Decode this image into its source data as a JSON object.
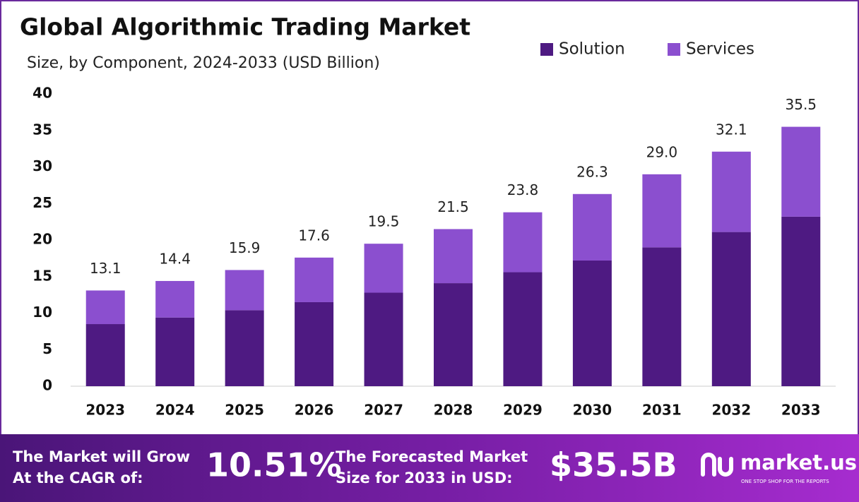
{
  "chart_data": {
    "type": "stacked-bar",
    "title": "Global Algorithmic Trading Market",
    "subtitle": "Size, by Component, 2024-2033 (USD Billion)",
    "categories": [
      "2023",
      "2024",
      "2025",
      "2026",
      "2027",
      "2028",
      "2029",
      "2030",
      "2031",
      "2032",
      "2033"
    ],
    "series": [
      {
        "name": "Solution",
        "color": "#4e1a82",
        "values": [
          8.5,
          9.4,
          10.4,
          11.5,
          12.8,
          14.1,
          15.6,
          17.2,
          19.0,
          21.1,
          23.2
        ]
      },
      {
        "name": "Services",
        "color": "#8b4fcf",
        "values": [
          4.6,
          5.0,
          5.5,
          6.1,
          6.7,
          7.4,
          8.2,
          9.1,
          10.0,
          11.0,
          12.3
        ]
      }
    ],
    "totals": [
      13.1,
      14.4,
      15.9,
      17.6,
      19.5,
      21.5,
      23.8,
      26.3,
      29.0,
      32.1,
      35.5
    ],
    "total_labels": [
      "13.1",
      "14.4",
      "15.9",
      "17.6",
      "19.5",
      "21.5",
      "23.8",
      "26.3",
      "29.0",
      "32.1",
      "35.5"
    ],
    "ylim": [
      0,
      40
    ],
    "yticks": [
      0,
      5,
      10,
      15,
      20,
      25,
      30,
      35,
      40
    ],
    "legend": "top-right"
  },
  "footer": {
    "cagr_text": [
      "The Market will Grow",
      "At the CAGR of:"
    ],
    "cagr_value": "10.51%",
    "forecast_text": [
      "The Forecasted Market",
      "Size for 2033 in USD:"
    ],
    "forecast_value": "$35.5B",
    "brand": "market.us",
    "tagline": "ONE STOP SHOP FOR THE REPORTS"
  }
}
